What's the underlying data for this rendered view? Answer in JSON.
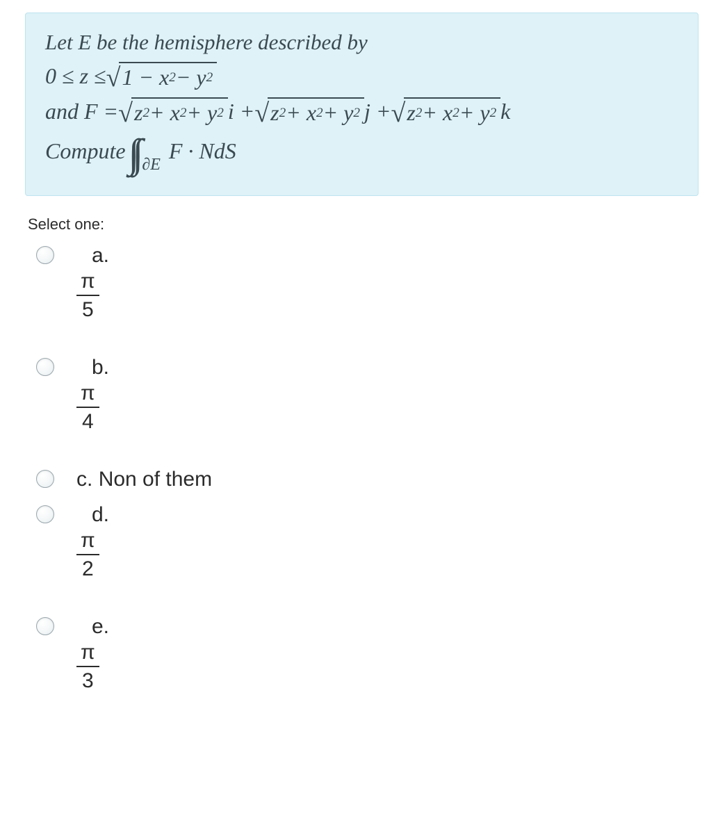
{
  "question_box": {
    "background_color": "#def2f8",
    "border_color": "#bfe3ee",
    "text_color": "#3a4a50"
  },
  "prompt": {
    "line1": "Let E be the hemisphere described by",
    "line2_prefix": "0 ≤ z ≤ ",
    "line2_radicand": "1 − x² − y²",
    "line3_prefix": "and F = ",
    "line3_r1": "z² + x² + y²",
    "line3_mid1": " i + ",
    "line3_r2": "z² + x² + y²",
    "line3_mid2": " j + ",
    "line3_r3": "z² + x² + y²",
    "line3_suffix": " k",
    "line4_prefix": "Compute ",
    "line4_sub": "∂E",
    "line4_body": "F · NdS"
  },
  "select_label": "Select one:",
  "options": [
    {
      "label": "a.",
      "math_num": "π",
      "math_den": "5",
      "text": null
    },
    {
      "label": "b.",
      "math_num": "π",
      "math_den": "4",
      "text": null
    },
    {
      "label": "c.",
      "math_num": null,
      "math_den": null,
      "text": "Non of them"
    },
    {
      "label": "d.",
      "math_num": "π",
      "math_den": "2",
      "text": null
    },
    {
      "label": "e.",
      "math_num": "π",
      "math_den": "3",
      "text": null
    }
  ]
}
